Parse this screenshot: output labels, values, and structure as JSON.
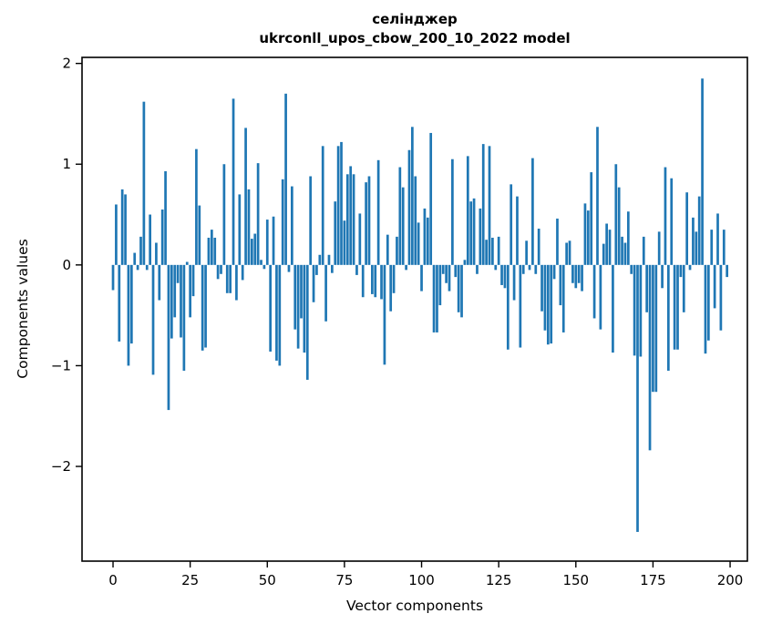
{
  "figure": {
    "title_line1": "селінджер",
    "title_line2": "ukrconll_upos_cbow_200_10_2022 model"
  },
  "chart_data": {
    "type": "bar",
    "title": "селінджер\nukrconll_upos_cbow_200_10_2022 model",
    "xlabel": "Vector components",
    "ylabel": "Components values",
    "legend": "none",
    "grid": false,
    "bar_color": "#1f77b4",
    "axis_color": "#000000",
    "background_color": "#ffffff",
    "n_components": 200,
    "x_tick_labels": [
      "0",
      "25",
      "50",
      "75",
      "100",
      "125",
      "150",
      "175",
      "200"
    ],
    "x_tick_values": [
      0,
      25,
      50,
      75,
      100,
      125,
      150,
      175,
      200
    ],
    "y_tick_labels": [
      "2",
      "1",
      "0",
      "−1",
      "−2"
    ],
    "y_tick_values": [
      2,
      1,
      0,
      -1,
      -2
    ],
    "xlim": [
      -10.05,
      205.6
    ],
    "ylim": [
      -2.94,
      2.06
    ],
    "values": [
      -0.25,
      0.6,
      -0.76,
      0.75,
      0.7,
      -1.0,
      -0.78,
      0.12,
      -0.05,
      0.28,
      1.62,
      -0.05,
      0.5,
      -1.09,
      0.22,
      -0.35,
      0.55,
      0.93,
      -1.44,
      -0.73,
      -0.52,
      -0.18,
      -0.72,
      -1.05,
      0.03,
      -0.52,
      -0.31,
      1.15,
      0.59,
      -0.85,
      -0.82,
      0.27,
      0.35,
      0.27,
      -0.14,
      -0.09,
      1.0,
      -0.28,
      -0.28,
      1.65,
      -0.35,
      0.7,
      -0.15,
      1.36,
      0.75,
      0.26,
      0.31,
      1.01,
      0.05,
      -0.04,
      0.45,
      -0.86,
      0.48,
      -0.95,
      -1.0,
      0.85,
      1.7,
      -0.07,
      0.78,
      -0.64,
      -0.83,
      -0.53,
      -0.87,
      -1.14,
      0.88,
      -0.37,
      -0.1,
      0.1,
      1.18,
      -0.56,
      0.1,
      -0.08,
      0.63,
      1.18,
      1.22,
      0.44,
      0.9,
      0.98,
      0.9,
      -0.1,
      0.51,
      -0.32,
      0.82,
      0.88,
      -0.29,
      -0.32,
      1.04,
      -0.34,
      -0.99,
      0.3,
      -0.46,
      -0.28,
      0.28,
      0.97,
      0.77,
      -0.05,
      1.14,
      1.37,
      0.88,
      0.42,
      -0.26,
      0.56,
      0.47,
      1.31,
      -0.67,
      -0.67,
      -0.4,
      -0.09,
      -0.18,
      -0.26,
      1.05,
      -0.12,
      -0.47,
      -0.52,
      0.05,
      1.08,
      0.63,
      0.66,
      -0.09,
      0.56,
      1.2,
      0.25,
      1.18,
      0.27,
      -0.05,
      0.28,
      -0.2,
      -0.23,
      -0.84,
      0.8,
      -0.35,
      0.68,
      -0.82,
      -0.09,
      0.24,
      -0.05,
      1.06,
      -0.09,
      0.36,
      -0.46,
      -0.65,
      -0.79,
      -0.78,
      -0.14,
      0.46,
      -0.4,
      -0.67,
      0.22,
      0.24,
      -0.18,
      -0.23,
      -0.18,
      -0.26,
      0.61,
      0.54,
      0.92,
      -0.53,
      1.37,
      -0.64,
      0.21,
      0.41,
      0.35,
      -0.87,
      1.0,
      0.77,
      0.28,
      0.22,
      0.53,
      -0.09,
      -0.9,
      -2.65,
      -0.91,
      0.28,
      -0.47,
      -1.84,
      -1.26,
      -1.26,
      0.33,
      -0.23,
      0.97,
      -1.05,
      0.86,
      -0.84,
      -0.84,
      -0.12,
      -0.47,
      0.72,
      -0.05,
      0.47,
      0.33,
      0.68,
      1.85,
      -0.88,
      -0.75,
      0.35,
      -0.43,
      0.51,
      -0.65,
      0.35,
      -0.12
    ]
  }
}
